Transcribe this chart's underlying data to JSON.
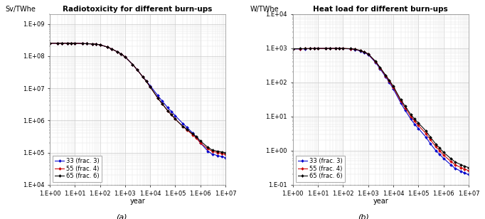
{
  "title_a": "Radiotoxicity for different burn-ups",
  "title_b": "Heat load for different burn-ups",
  "ylabel_a": "Sv/TWhe",
  "ylabel_b": "W/TWhe",
  "xlabel": "year",
  "caption_a": "(a)",
  "caption_b": "(b)",
  "legend_labels": [
    "33 (frac. 3)",
    "55 (frac. 4)",
    "65 (frac. 6)"
  ],
  "line_colors": [
    "#0000cc",
    "#cc0000",
    "#000000"
  ],
  "marker_colors": [
    "#0000cc",
    "#cc0000",
    "#000000"
  ],
  "x_values": [
    1,
    2,
    3,
    5,
    7,
    10,
    20,
    30,
    50,
    70,
    100,
    200,
    300,
    500,
    700,
    1000,
    2000,
    3000,
    5000,
    7000,
    10000,
    20000,
    30000,
    50000,
    70000,
    100000,
    200000,
    300000,
    500000,
    700000,
    1000000,
    2000000,
    3000000,
    5000000,
    7000000,
    10000000
  ],
  "radio_33": [
    250000000.0,
    250000000.0,
    250000000.0,
    250000000.0,
    250000000.0,
    250000000.0,
    245000000.0,
    242000000.0,
    238000000.0,
    233000000.0,
    225000000.0,
    190000000.0,
    165000000.0,
    135000000.0,
    115000000.0,
    95000000.0,
    55000000.0,
    38000000.0,
    23000000.0,
    17000000.0,
    12000000.0,
    6000000.0,
    4000000.0,
    2500000.0,
    1900000.0,
    1400000.0,
    800000.0,
    600000.0,
    400000.0,
    300000.0,
    200000.0,
    110000.0,
    90000.0,
    80000.0,
    75000.0,
    70000.0
  ],
  "radio_55": [
    250000000.0,
    250000000.0,
    250000000.0,
    250000000.0,
    250000000.0,
    250000000.0,
    245000000.0,
    242000000.0,
    238000000.0,
    233000000.0,
    225000000.0,
    190000000.0,
    165000000.0,
    135000000.0,
    115000000.0,
    95000000.0,
    55000000.0,
    38000000.0,
    23000000.0,
    16500000.0,
    11000000.0,
    5000000.0,
    3300000.0,
    2000000.0,
    1500000.0,
    1100000.0,
    650000.0,
    500000.0,
    350000.0,
    280000.0,
    200000.0,
    130000.0,
    110000.0,
    100000.0,
    95000.0,
    90000.0
  ],
  "radio_65": [
    250000000.0,
    250000000.0,
    250000000.0,
    250000000.0,
    250000000.0,
    250000000.0,
    245000000.0,
    242000000.0,
    238000000.0,
    233000000.0,
    225000000.0,
    190000000.0,
    165000000.0,
    135000000.0,
    115000000.0,
    95000000.0,
    55000000.0,
    38000000.0,
    23000000.0,
    16500000.0,
    11000000.0,
    5000000.0,
    3300000.0,
    2000000.0,
    1500000.0,
    1100000.0,
    650000.0,
    520000.0,
    380000.0,
    310000.0,
    230000.0,
    145000.0,
    120000.0,
    110000.0,
    105000.0,
    100000.0
  ],
  "heat_33": [
    950,
    960,
    970,
    975,
    980,
    985,
    985,
    985,
    985,
    985,
    980,
    960,
    920,
    830,
    750,
    660,
    380,
    250,
    145,
    100,
    65,
    25,
    15,
    8.5,
    6.0,
    4.5,
    2.5,
    1.6,
    1.0,
    0.78,
    0.6,
    0.38,
    0.3,
    0.25,
    0.22,
    0.2
  ],
  "heat_55": [
    960,
    970,
    975,
    980,
    985,
    988,
    990,
    990,
    990,
    990,
    988,
    968,
    935,
    850,
    770,
    680,
    400,
    265,
    155,
    108,
    72,
    28,
    18,
    10,
    7.5,
    5.5,
    3.2,
    2.1,
    1.3,
    1.0,
    0.75,
    0.48,
    0.38,
    0.32,
    0.29,
    0.26
  ],
  "heat_65": [
    970,
    978,
    982,
    987,
    991,
    994,
    996,
    997,
    997,
    997,
    995,
    975,
    945,
    862,
    782,
    692,
    412,
    275,
    163,
    115,
    78,
    31,
    20,
    11.5,
    8.5,
    6.5,
    3.8,
    2.5,
    1.55,
    1.2,
    0.9,
    0.58,
    0.46,
    0.39,
    0.35,
    0.32
  ],
  "bg_color": "#ffffff",
  "grid_color": "#cccccc",
  "fig_bg_color": "#ffffff"
}
